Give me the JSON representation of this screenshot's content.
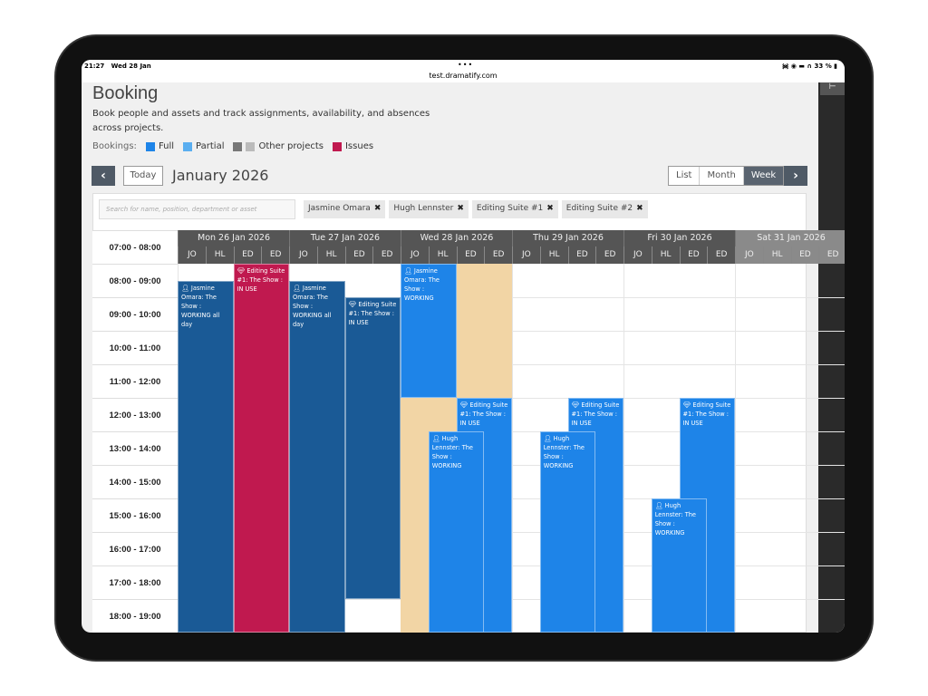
{
  "status_bar": {
    "time": "21:27",
    "date": "Wed 28 Jan",
    "url": "test.dramatify.com",
    "dots": "•••",
    "right": "᯼ ◉ ▬ ∩ 33 % ▮"
  },
  "page": {
    "title": "Booking",
    "description": "Book people and assets and track assignments, availability, and absences across projects."
  },
  "legend": {
    "label": "Bookings:",
    "items": [
      {
        "label": "Full",
        "colors": [
          "#1e84e8"
        ]
      },
      {
        "label": "Partial",
        "colors": [
          "#5aaef0"
        ]
      },
      {
        "label": "Other projects",
        "colors": [
          "#777777",
          "#bbbbbb"
        ]
      },
      {
        "label": "Issues",
        "colors": [
          "#c0194f"
        ]
      }
    ]
  },
  "toolbar": {
    "prev": "‹",
    "today": "Today",
    "month": "January 2026",
    "views": [
      "List",
      "Month",
      "Week"
    ],
    "active_view": "Week",
    "next": "›"
  },
  "search": {
    "placeholder": "Search for name, position, department or asset"
  },
  "filters": [
    "Jasmine Omara",
    "Hugh Lennster",
    "Editing Suite #1",
    "Editing Suite #2"
  ],
  "time_slots": [
    "07:00 - 08:00",
    "08:00 - 09:00",
    "09:00 - 10:00",
    "10:00 - 11:00",
    "11:00 - 12:00",
    "12:00 - 13:00",
    "13:00 - 14:00",
    "14:00 - 15:00",
    "15:00 - 16:00",
    "16:00 - 17:00",
    "17:00 - 18:00",
    "18:00 - 19:00"
  ],
  "days": [
    "Mon 26 Jan 2026",
    "Tue 27 Jan 2026",
    "Wed 28 Jan 2026",
    "Thu 29 Jan 2026",
    "Fri 30 Jan 2026",
    "Sat 31 Jan 2026"
  ],
  "columns": [
    "JO",
    "HL",
    "ED",
    "ED"
  ],
  "colors": {
    "other_project": "#1a5a96",
    "full": "#1e84e8",
    "issue": "#c0194f",
    "unavailable": "#f2d5a5",
    "header": "#555555"
  },
  "events": [
    {
      "day": "Mon 26 Jan 2026",
      "start": "08:30",
      "end": "19:00",
      "icon": "person-icon",
      "text": "Jasmine Omara: The Show : WORKING all day",
      "kind": "other_project"
    },
    {
      "day": "Mon 26 Jan 2026",
      "start": "08:00",
      "end": "19:00",
      "icon": "diamond-icon",
      "text": "Editing Suite #1: The Show : IN USE",
      "kind": "issue"
    },
    {
      "day": "Tue 27 Jan 2026",
      "start": "08:30",
      "end": "19:00",
      "icon": "person-icon",
      "text": "Jasmine Omara: The Show : WORKING all day",
      "kind": "other_project"
    },
    {
      "day": "Tue 27 Jan 2026",
      "start": "09:00",
      "end": "18:00",
      "icon": "diamond-icon",
      "text": "Editing Suite #1: The Show : IN USE",
      "kind": "other_project"
    },
    {
      "day": "Wed 28 Jan 2026",
      "start": "08:00",
      "end": "12:00",
      "icon": "",
      "text": "",
      "kind": "unavailable"
    },
    {
      "day": "Wed 28 Jan 2026",
      "start": "12:00",
      "end": "19:00",
      "icon": "",
      "text": "",
      "kind": "unavailable"
    },
    {
      "day": "Wed 28 Jan 2026",
      "start": "08:00",
      "end": "12:00",
      "icon": "person-icon",
      "text": "Jasmine Omara: The Show : WORKING",
      "kind": "full"
    },
    {
      "day": "Wed 28 Jan 2026",
      "start": "12:00",
      "end": "19:00",
      "icon": "diamond-icon",
      "text": "Editing Suite #1: The Show : IN USE",
      "kind": "full"
    },
    {
      "day": "Wed 28 Jan 2026",
      "start": "13:00",
      "end": "19:00",
      "icon": "person-icon",
      "text": "Hugh Lennster: The Show : WORKING",
      "kind": "full"
    },
    {
      "day": "Thu 29 Jan 2026",
      "start": "12:00",
      "end": "19:00",
      "icon": "diamond-icon",
      "text": "Editing Suite #1: The Show : IN USE",
      "kind": "full"
    },
    {
      "day": "Thu 29 Jan 2026",
      "start": "13:00",
      "end": "19:00",
      "icon": "person-icon",
      "text": "Hugh Lennster: The Show : WORKING",
      "kind": "full"
    },
    {
      "day": "Fri 30 Jan 2026",
      "start": "12:00",
      "end": "19:00",
      "icon": "diamond-icon",
      "text": "Editing Suite #1: The Show : IN USE",
      "kind": "full"
    },
    {
      "day": "Fri 30 Jan 2026",
      "start": "15:00",
      "end": "19:00",
      "icon": "person-icon",
      "text": "Hugh Lennster: The Show : WORKING",
      "kind": "full"
    }
  ]
}
